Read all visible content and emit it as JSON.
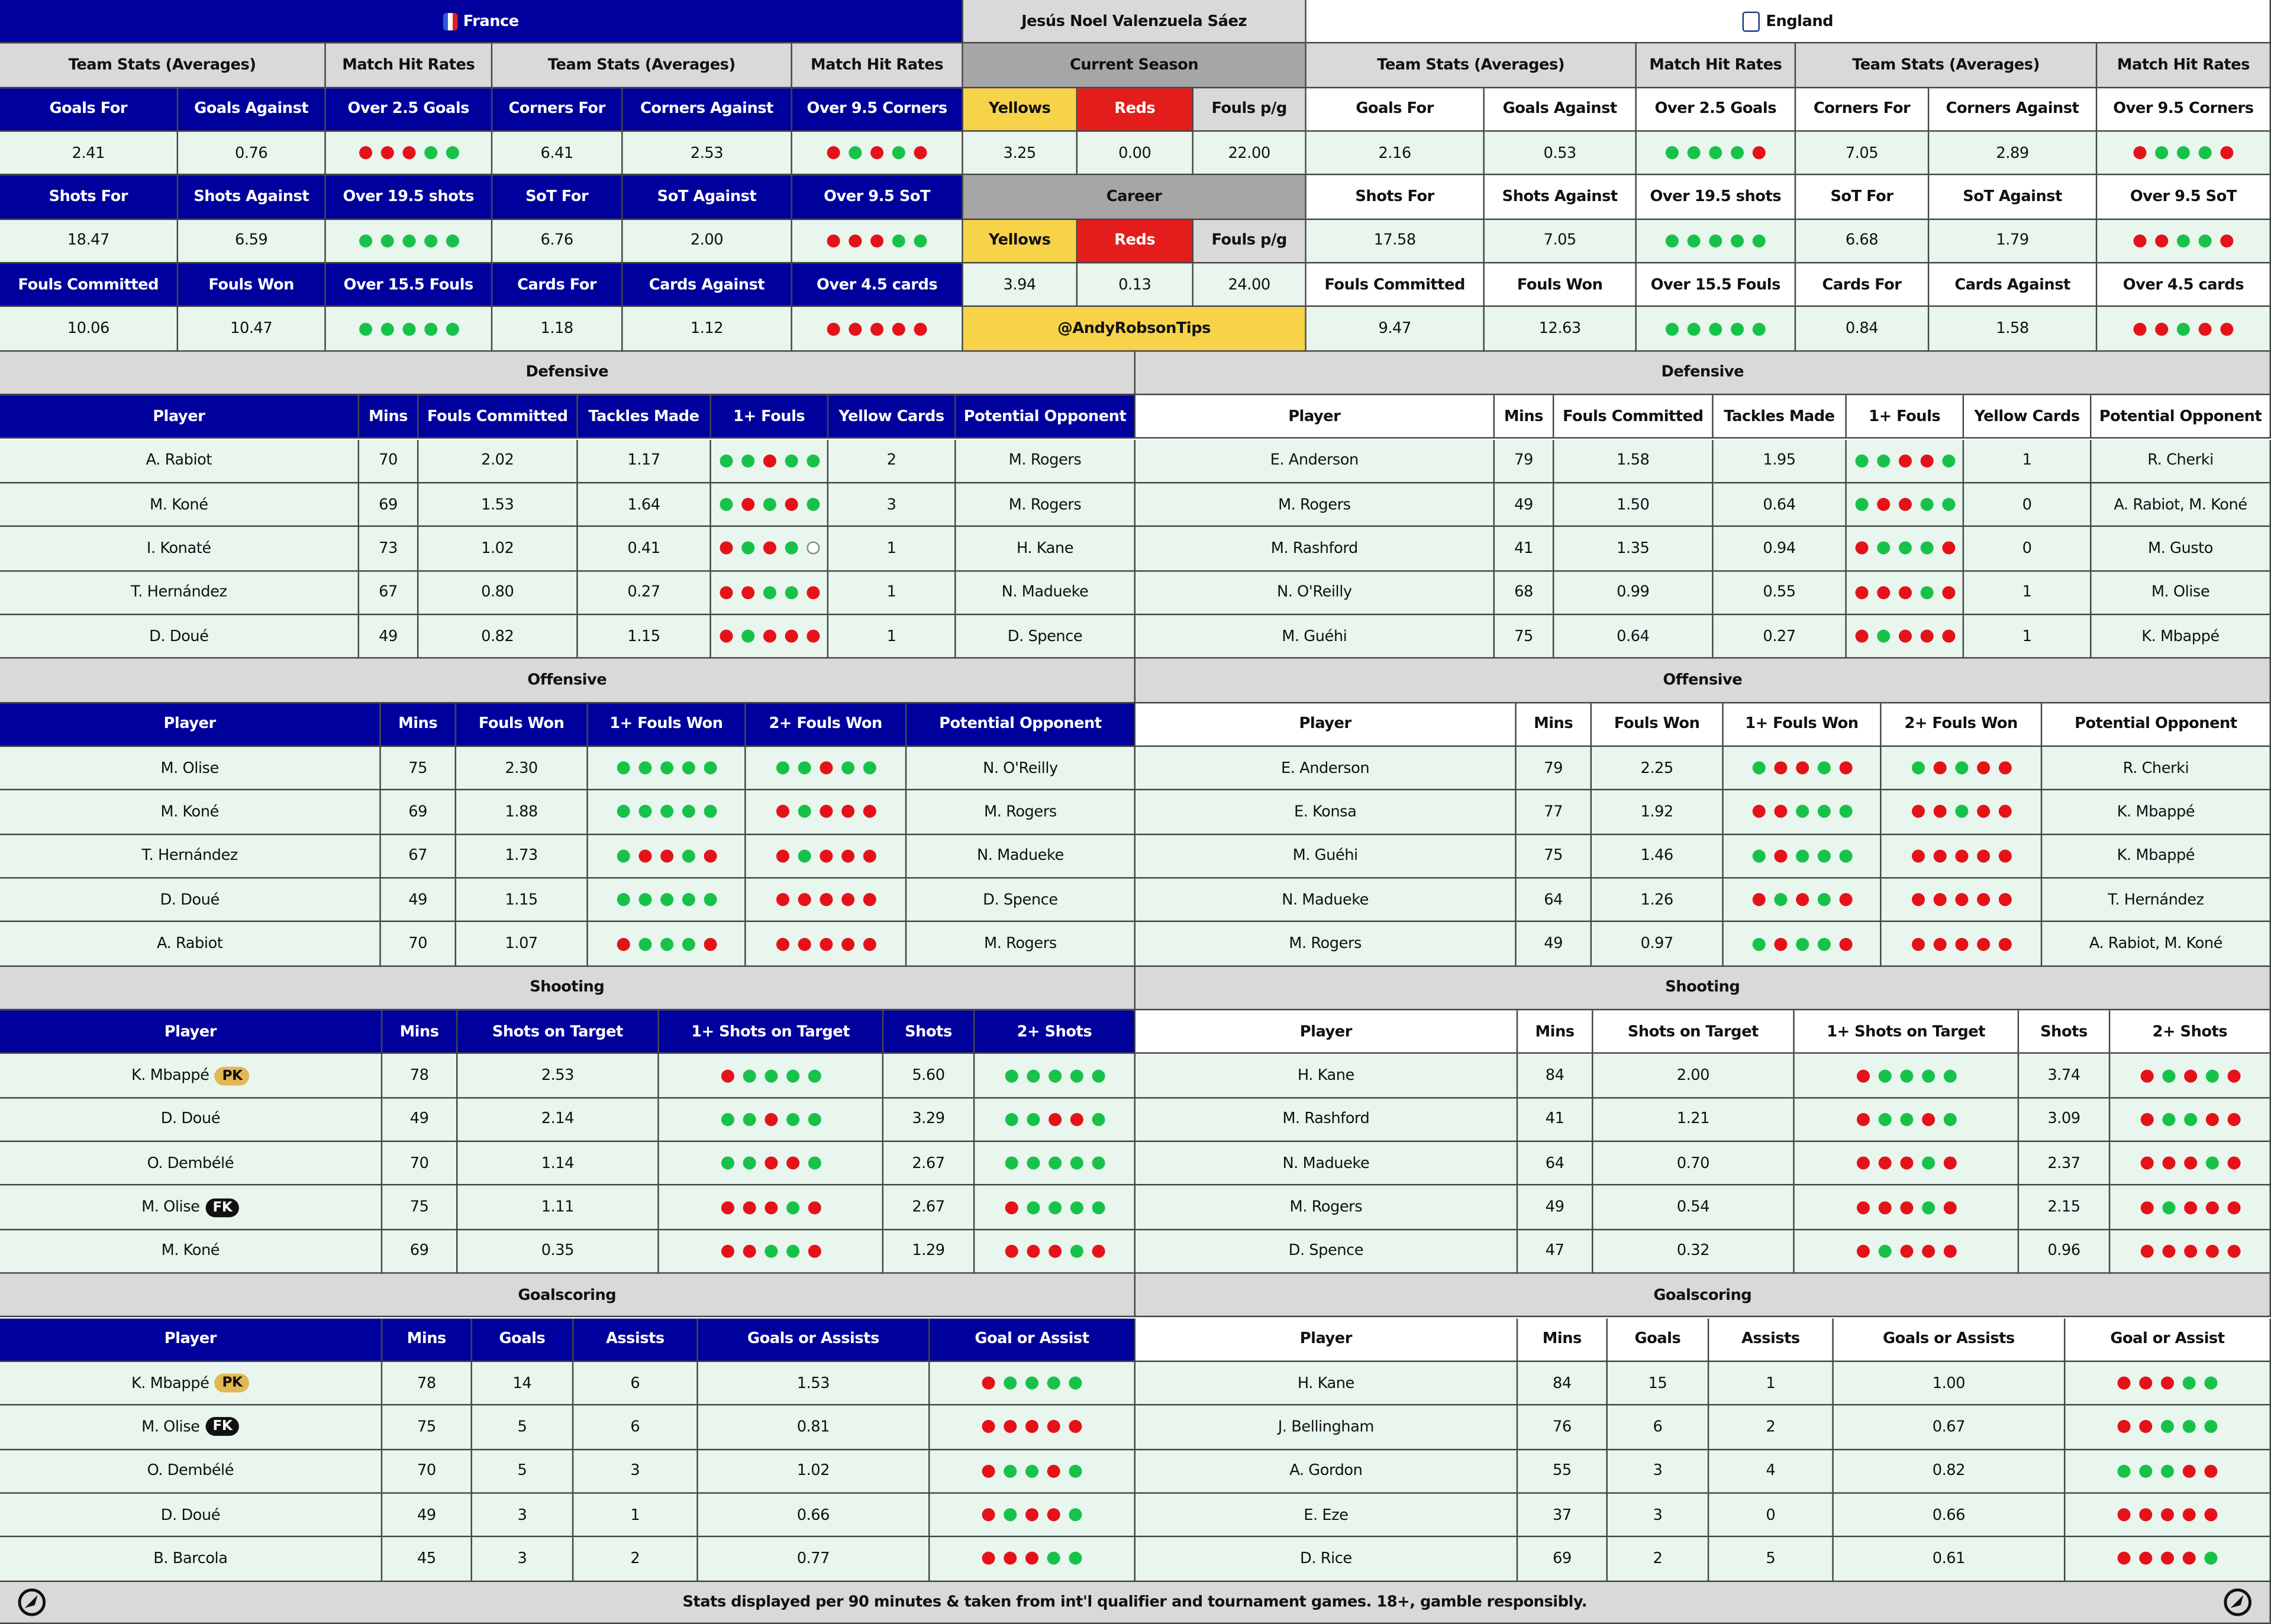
{
  "header": {
    "france": "France",
    "referee": "Jesús Noel Valenzuela Sáez",
    "england": "England"
  },
  "team_stats": {
    "groups": [
      "Team Stats (Averages)",
      "Match Hit Rates"
    ],
    "labels": [
      [
        "Goals For",
        "Goals Against",
        "Over 2.5 Goals",
        "Corners For",
        "Corners Against",
        "Over 9.5 Corners"
      ],
      [
        "Shots For",
        "Shots Against",
        "Over 19.5 shots",
        "SoT For",
        "SoT Against",
        "Over 9.5 SoT"
      ],
      [
        "Fouls Committed",
        "Fouls Won",
        "Over 15.5 Fouls",
        "Cards For",
        "Cards Against",
        "Over 4.5 cards"
      ]
    ],
    "teams": [
      {
        "values": [
          [
            "2.41",
            "0.76",
            {
              "dots": "RRRGG"
            },
            "6.41",
            "2.53",
            {
              "dots": "RGRGR"
            }
          ],
          [
            "18.47",
            "6.59",
            {
              "dots": "GGGGG"
            },
            "6.76",
            "2.00",
            {
              "dots": "RRRGG"
            }
          ],
          [
            "10.06",
            "10.47",
            {
              "dots": "GGGGG"
            },
            "1.18",
            "1.12",
            {
              "dots": "RRRRR"
            }
          ]
        ]
      },
      {
        "values": [
          [
            "2.16",
            "0.53",
            {
              "dots": "GGGGR"
            },
            "7.05",
            "2.89",
            {
              "dots": "RGGGR"
            }
          ],
          [
            "17.58",
            "7.05",
            {
              "dots": "GGGGG"
            },
            "6.68",
            "1.79",
            {
              "dots": "RRGGR"
            }
          ],
          [
            "9.47",
            "12.63",
            {
              "dots": "GGGGG"
            },
            "0.84",
            "1.58",
            {
              "dots": "RRGRR"
            }
          ]
        ]
      }
    ]
  },
  "referee_stats": {
    "periods": [
      {
        "title": "Current Season",
        "labels": [
          "Yellows",
          "Reds",
          "Fouls p/g"
        ],
        "values": [
          "3.25",
          "0.00",
          "22.00"
        ]
      },
      {
        "title": "Career",
        "labels": [
          "Yellows",
          "Reds",
          "Fouls p/g"
        ],
        "values": [
          "3.94",
          "0.13",
          "24.00"
        ]
      }
    ],
    "handle": "@AndyRobsonTips"
  },
  "sections": [
    {
      "title": "Defensive",
      "columns": [
        "Player",
        "Mins",
        "Fouls Committed",
        "Tackles Made",
        "1+ Fouls",
        "Yellow Cards",
        "Potential Opponent"
      ],
      "teams": [
        {
          "rows": [
            [
              "A. Rabiot",
              "70",
              "2.02",
              "1.17",
              {
                "dots": "GGRGG"
              },
              "2",
              "M. Rogers"
            ],
            [
              "M. Koné",
              "69",
              "1.53",
              "1.64",
              {
                "dots": "GRGRG"
              },
              "3",
              "M. Rogers"
            ],
            [
              "I. Konaté",
              "73",
              "1.02",
              "0.41",
              {
                "dots": "RGRGO"
              },
              "1",
              "H. Kane"
            ],
            [
              "T. Hernández",
              "67",
              "0.80",
              "0.27",
              {
                "dots": "RRGGR"
              },
              "1",
              "N. Madueke"
            ],
            [
              "D. Doué",
              "49",
              "0.82",
              "1.15",
              {
                "dots": "RGRRR"
              },
              "1",
              "D. Spence"
            ]
          ]
        },
        {
          "rows": [
            [
              "E. Anderson",
              "79",
              "1.58",
              "1.95",
              {
                "dots": "GGRRG"
              },
              "1",
              "R. Cherki"
            ],
            [
              "M. Rogers",
              "49",
              "1.50",
              "0.64",
              {
                "dots": "GRRGG"
              },
              "0",
              "A. Rabiot, M. Koné"
            ],
            [
              "M. Rashford",
              "41",
              "1.35",
              "0.94",
              {
                "dots": "RGGGR"
              },
              "0",
              "M. Gusto"
            ],
            [
              "N. O'Reilly",
              "68",
              "0.99",
              "0.55",
              {
                "dots": "RRRGR"
              },
              "1",
              "M. Olise"
            ],
            [
              "M. Guéhi",
              "75",
              "0.64",
              "0.27",
              {
                "dots": "RGRRR"
              },
              "1",
              "K. Mbappé"
            ]
          ]
        }
      ]
    },
    {
      "title": "Offensive",
      "columns": [
        "Player",
        "Mins",
        "Fouls Won",
        "1+ Fouls Won",
        "2+ Fouls Won",
        "Potential Opponent"
      ],
      "teams": [
        {
          "rows": [
            [
              "M. Olise",
              "75",
              "2.30",
              {
                "dots": "GGGGG"
              },
              {
                "dots": "GGRGG"
              },
              "N. O'Reilly"
            ],
            [
              "M. Koné",
              "69",
              "1.88",
              {
                "dots": "GGGGG"
              },
              {
                "dots": "RGRRR"
              },
              "M. Rogers"
            ],
            [
              "T. Hernández",
              "67",
              "1.73",
              {
                "dots": "GRRGR"
              },
              {
                "dots": "RGRRR"
              },
              "N. Madueke"
            ],
            [
              "D. Doué",
              "49",
              "1.15",
              {
                "dots": "GGGGG"
              },
              {
                "dots": "RRRRR"
              },
              "D. Spence"
            ],
            [
              "A. Rabiot",
              "70",
              "1.07",
              {
                "dots": "RGGGR"
              },
              {
                "dots": "RRRRR"
              },
              "M. Rogers"
            ]
          ]
        },
        {
          "rows": [
            [
              "E. Anderson",
              "79",
              "2.25",
              {
                "dots": "GRRGR"
              },
              {
                "dots": "GRGRR"
              },
              "R. Cherki"
            ],
            [
              "E. Konsa",
              "77",
              "1.92",
              {
                "dots": "RRGGG"
              },
              {
                "dots": "RRGRR"
              },
              "K. Mbappé"
            ],
            [
              "M. Guéhi",
              "75",
              "1.46",
              {
                "dots": "GRGGG"
              },
              {
                "dots": "RRRRR"
              },
              "K. Mbappé"
            ],
            [
              "N. Madueke",
              "64",
              "1.26",
              {
                "dots": "RGRGR"
              },
              {
                "dots": "RRRRR"
              },
              "T. Hernández"
            ],
            [
              "M. Rogers",
              "49",
              "0.97",
              {
                "dots": "GRGGR"
              },
              {
                "dots": "RRRRR"
              },
              "A. Rabiot, M. Koné"
            ]
          ]
        }
      ]
    },
    {
      "title": "Shooting",
      "columns": [
        "Player",
        "Mins",
        "Shots on Target",
        "1+ Shots on Target",
        "Shots",
        "2+ Shots"
      ],
      "teams": [
        {
          "rows": [
            [
              {
                "name": "K. Mbappé",
                "badge": "PK"
              },
              "78",
              "2.53",
              {
                "dots": "RGGGG"
              },
              "5.60",
              {
                "dots": "GGGGG"
              }
            ],
            [
              "D. Doué",
              "49",
              "2.14",
              {
                "dots": "GGRGG"
              },
              "3.29",
              {
                "dots": "GGRRG"
              }
            ],
            [
              "O. Dembélé",
              "70",
              "1.14",
              {
                "dots": "GGRRG"
              },
              "2.67",
              {
                "dots": "GGGGG"
              }
            ],
            [
              {
                "name": "M. Olise",
                "badge": "FK"
              },
              "75",
              "1.11",
              {
                "dots": "RRRGR"
              },
              "2.67",
              {
                "dots": "RGGGG"
              }
            ],
            [
              "M. Koné",
              "69",
              "0.35",
              {
                "dots": "RRGGR"
              },
              "1.29",
              {
                "dots": "RRRGR"
              }
            ]
          ]
        },
        {
          "rows": [
            [
              "H. Kane",
              "84",
              "2.00",
              {
                "dots": "RGGGG"
              },
              "3.74",
              {
                "dots": "RGRGR"
              }
            ],
            [
              "M. Rashford",
              "41",
              "1.21",
              {
                "dots": "RGGRG"
              },
              "3.09",
              {
                "dots": "RGGRR"
              }
            ],
            [
              "N. Madueke",
              "64",
              "0.70",
              {
                "dots": "RRRGR"
              },
              "2.37",
              {
                "dots": "RRRGR"
              }
            ],
            [
              "M. Rogers",
              "49",
              "0.54",
              {
                "dots": "RRRGR"
              },
              "2.15",
              {
                "dots": "RGRRR"
              }
            ],
            [
              "D. Spence",
              "47",
              "0.32",
              {
                "dots": "RGRRR"
              },
              "0.96",
              {
                "dots": "RRRRR"
              }
            ]
          ]
        }
      ]
    },
    {
      "title": "Goalscoring",
      "columns": [
        "Player",
        "Mins",
        "Goals",
        "Assists",
        "Goals or Assists",
        "Goal or Assist"
      ],
      "teams": [
        {
          "rows": [
            [
              {
                "name": "K. Mbappé",
                "badge": "PK"
              },
              "78",
              "14",
              "6",
              "1.53",
              {
                "dots": "RGGGG"
              }
            ],
            [
              {
                "name": "M. Olise",
                "badge": "FK"
              },
              "75",
              "5",
              "6",
              "0.81",
              {
                "dots": "RRRRR"
              }
            ],
            [
              "O. Dembélé",
              "70",
              "5",
              "3",
              "1.02",
              {
                "dots": "RGGRG"
              }
            ],
            [
              "D. Doué",
              "49",
              "3",
              "1",
              "0.66",
              {
                "dots": "RGRRG"
              }
            ],
            [
              "B. Barcola",
              "45",
              "3",
              "2",
              "0.77",
              {
                "dots": "RRRGG"
              }
            ]
          ]
        },
        {
          "rows": [
            [
              "H. Kane",
              "84",
              "15",
              "1",
              "1.00",
              {
                "dots": "RRRGG"
              }
            ],
            [
              "J. Bellingham",
              "76",
              "6",
              "2",
              "0.67",
              {
                "dots": "RRGGG"
              }
            ],
            [
              "A. Gordon",
              "55",
              "3",
              "4",
              "0.82",
              {
                "dots": "GGGRR"
              }
            ],
            [
              "E. Eze",
              "37",
              "3",
              "0",
              "0.66",
              {
                "dots": "RRRRR"
              }
            ],
            [
              "D. Rice",
              "69",
              "2",
              "5",
              "0.61",
              {
                "dots": "RRRRG"
              }
            ]
          ]
        }
      ]
    }
  ],
  "footer": "Stats displayed per 90 minutes & taken from int'l qualifier and tournament games. 18+, gamble responsibly."
}
